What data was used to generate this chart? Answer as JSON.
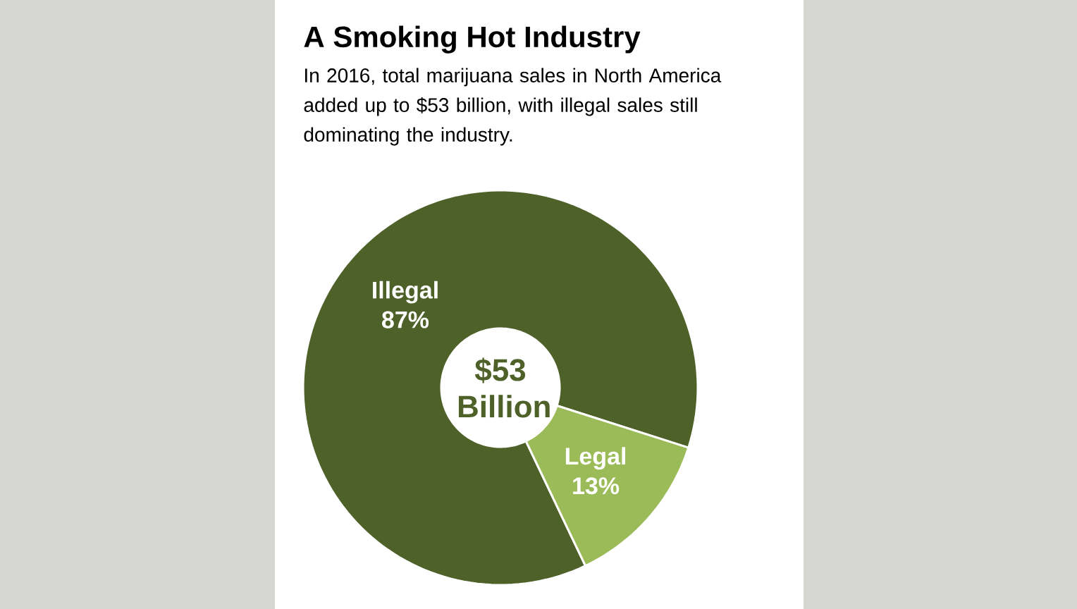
{
  "chart_data": {
    "type": "donut",
    "title": "A Smoking Hot Industry",
    "subtitle": "In 2016, total marijuana sales in North America added up to $53 billion, with illegal sales still dominating the industry.",
    "categories": [
      "Illegal",
      "Legal"
    ],
    "values": [
      87,
      13
    ],
    "value_labels": [
      "87%",
      "13%"
    ],
    "colors": [
      "#4e6129",
      "#9bbb59"
    ],
    "annotations": [
      "$53 Billion"
    ]
  }
}
